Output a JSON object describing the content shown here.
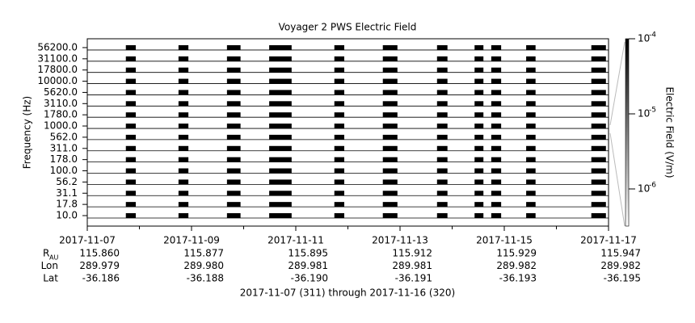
{
  "chart_data": {
    "type": "stackplot",
    "title": "Voyager 2 PWS Electric Field",
    "ylabel": "Frequency (Hz)",
    "y2label": "Electric Field (V/m)",
    "categories": [
      "10.0",
      "17.8",
      "31.1",
      "56.2",
      "100.0",
      "178.0",
      "311.0",
      "562.0",
      "1000.0",
      "1780.0",
      "3110.0",
      "5620.0",
      "10000.0",
      "17800.0",
      "31100.0",
      "56200.0"
    ],
    "xlim": [
      0,
      10
    ],
    "xticks": [
      {
        "value": 0,
        "label": "2017-11-07"
      },
      {
        "value": 2,
        "label": "2017-11-09"
      },
      {
        "value": 4,
        "label": "2017-11-11"
      },
      {
        "value": 6,
        "label": "2017-11-13"
      },
      {
        "value": 8,
        "label": "2017-11-15"
      },
      {
        "value": 10,
        "label": "2017-11-17"
      }
    ],
    "xminor": [
      1,
      3,
      5,
      7,
      9
    ],
    "segments": [
      [
        0.74,
        0.93
      ],
      [
        1.75,
        1.94
      ],
      [
        2.68,
        2.94
      ],
      [
        3.49,
        3.92
      ],
      [
        4.74,
        4.93
      ],
      [
        5.67,
        5.95
      ],
      [
        6.71,
        6.91
      ],
      [
        7.43,
        7.6
      ],
      [
        7.75,
        7.94
      ],
      [
        8.42,
        8.6
      ],
      [
        9.67,
        9.95
      ]
    ],
    "color": "#000000",
    "y2lim": [
      3.2e-07,
      0.0001
    ],
    "y2log": true,
    "y2ticks": [
      {
        "value": 0.0001,
        "label": "10",
        "exponent": "-4"
      },
      {
        "value": 1e-05,
        "label": "10",
        "exponent": "-5"
      },
      {
        "value": 1e-06,
        "label": "10",
        "exponent": "-6"
      }
    ],
    "ephemeris": [
      {
        "label": "R",
        "sub": "AU",
        "values": [
          "115.860",
          "115.877",
          "115.895",
          "115.912",
          "115.929",
          "115.947"
        ]
      },
      {
        "label": "Lon",
        "values": [
          "289.979",
          "289.980",
          "289.981",
          "289.981",
          "289.982",
          "289.982"
        ]
      },
      {
        "label": "Lat",
        "values": [
          "-36.186",
          "-36.188",
          "-36.190",
          "-36.191",
          "-36.193",
          "-36.195"
        ]
      }
    ],
    "caption": "2017-11-07 (311) through 2017-11-16 (320)"
  }
}
